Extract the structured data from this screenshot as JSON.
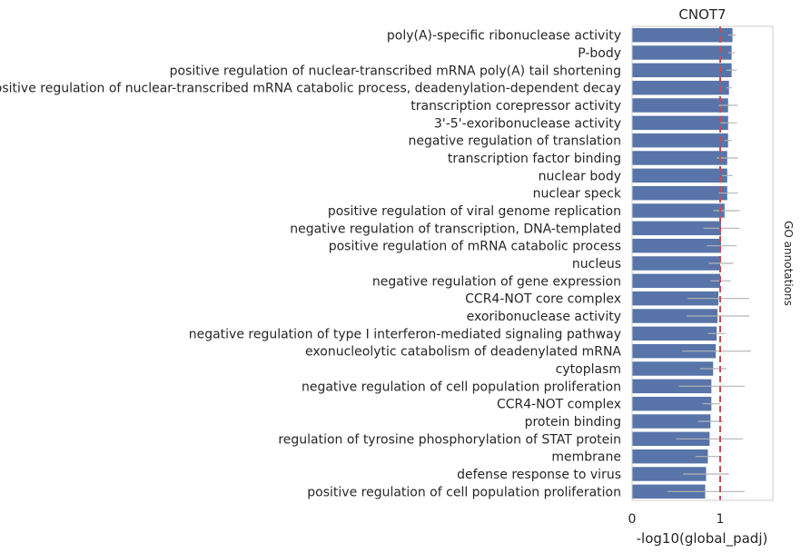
{
  "chart_data": {
    "type": "bar",
    "orientation": "horizontal",
    "title": "CNOT7",
    "xlabel": "-log10(global_padj)",
    "ylabel": "GO annotations",
    "xlim": [
      0,
      1.6
    ],
    "xticks": [
      "0",
      "1"
    ],
    "threshold_line": 1.0,
    "bar_color": "#5874a8",
    "threshold_color": "#c44e52",
    "error_color": "#b3b3b3",
    "grid": false,
    "categories": [
      "poly(A)-specific ribonuclease activity",
      "P-body",
      "positive regulation of nuclear-transcribed mRNA poly(A) tail shortening",
      "positive regulation of nuclear-transcribed mRNA catabolic process, deadenylation-dependent decay",
      "transcription corepressor activity",
      "3'-5'-exoribonuclease activity",
      "negative regulation of translation",
      "transcription factor binding",
      "nuclear body",
      "nuclear speck",
      "positive regulation of viral genome replication",
      "negative regulation of transcription, DNA-templated",
      "positive regulation of mRNA catabolic process",
      "nucleus",
      "negative regulation of gene expression",
      "CCR4-NOT core complex",
      "exoribonuclease activity",
      "negative regulation of type I interferon-mediated signaling pathway",
      "exonucleolytic catabolism of deadenylated mRNA",
      "cytoplasm",
      "negative regulation of cell population proliferation",
      "CCR4-NOT complex",
      "protein binding",
      "regulation of tyrosine phosphorylation of STAT protein",
      "membrane",
      "defense response to virus",
      "positive regulation of cell population proliferation"
    ],
    "values": [
      1.14,
      1.13,
      1.13,
      1.1,
      1.09,
      1.09,
      1.09,
      1.08,
      1.08,
      1.08,
      1.05,
      1.01,
      1.01,
      1.0,
      1.0,
      0.98,
      0.97,
      0.96,
      0.95,
      0.92,
      0.9,
      0.9,
      0.89,
      0.88,
      0.86,
      0.84,
      0.83
    ],
    "error_low": [
      1.09,
      1.09,
      1.07,
      1.07,
      0.98,
      1.0,
      1.05,
      0.96,
      1.02,
      0.98,
      0.92,
      0.81,
      0.85,
      0.87,
      0.89,
      0.63,
      0.62,
      0.86,
      0.57,
      0.77,
      0.53,
      0.8,
      0.75,
      0.5,
      0.72,
      0.58,
      0.4
    ],
    "error_high": [
      1.18,
      1.17,
      1.19,
      1.13,
      1.2,
      1.19,
      1.13,
      1.2,
      1.14,
      1.2,
      1.22,
      1.22,
      1.19,
      1.15,
      1.12,
      1.33,
      1.33,
      1.06,
      1.35,
      1.07,
      1.28,
      1.0,
      1.03,
      1.26,
      1.0,
      1.1,
      1.28
    ]
  }
}
